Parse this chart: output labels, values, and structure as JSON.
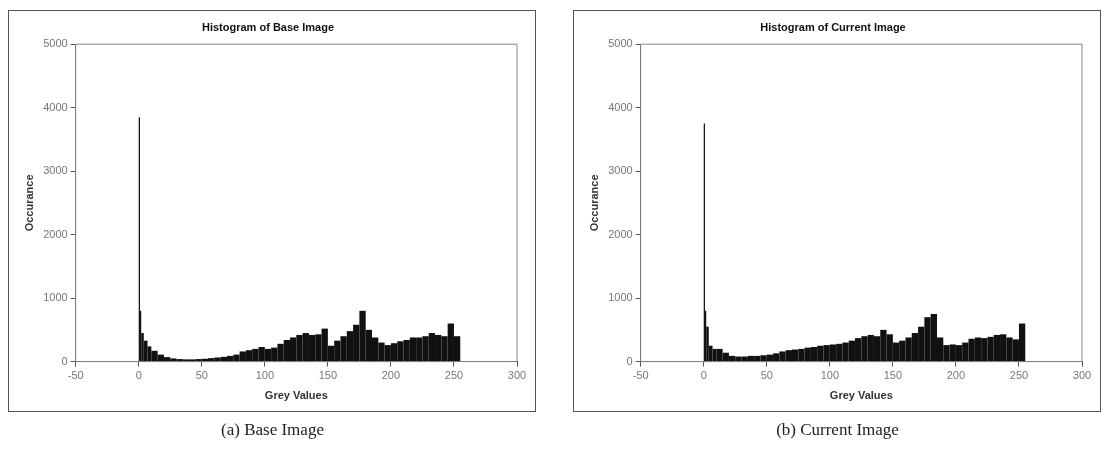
{
  "chart_data": [
    {
      "type": "histogram",
      "title": "Histogram of Base Image",
      "xlabel": "Grey Values",
      "ylabel": "Occurance",
      "annotations": [
        "(a)  Base Image"
      ],
      "color": "#111111",
      "bins": [
        0,
        1,
        2,
        4,
        7,
        10,
        15,
        20,
        25,
        30,
        35,
        40,
        45,
        50,
        55,
        60,
        65,
        70,
        75,
        80,
        85,
        90,
        95,
        100,
        105,
        110,
        115,
        120,
        125,
        130,
        135,
        140,
        145,
        150,
        155,
        160,
        165,
        170,
        175,
        180,
        185,
        190,
        195,
        200,
        205,
        210,
        215,
        220,
        225,
        230,
        235,
        240,
        245,
        250,
        255
      ],
      "values": [
        3850,
        800,
        450,
        330,
        240,
        170,
        110,
        70,
        50,
        40,
        35,
        35,
        40,
        45,
        55,
        65,
        75,
        90,
        110,
        160,
        180,
        200,
        230,
        200,
        220,
        280,
        340,
        380,
        420,
        450,
        420,
        430,
        520,
        250,
        330,
        400,
        480,
        580,
        800,
        500,
        380,
        300,
        260,
        290,
        320,
        340,
        380,
        380,
        400,
        450,
        420,
        400,
        600,
        400
      ],
      "xlim": [
        -50,
        300
      ],
      "xticks": [
        -50,
        0,
        50,
        100,
        150,
        200,
        250,
        300
      ],
      "ylim": [
        0,
        5000
      ],
      "yticks": [
        0,
        1000,
        2000,
        3000,
        4000,
        5000
      ],
      "grid": false,
      "legend": false
    },
    {
      "type": "histogram",
      "title": "Histogram of Current Image",
      "xlabel": "Grey Values",
      "ylabel": "Occurance",
      "annotations": [
        "(b)  Current Image"
      ],
      "color": "#111111",
      "bins": [
        0,
        1,
        2,
        4,
        7,
        10,
        15,
        20,
        25,
        30,
        35,
        40,
        45,
        50,
        55,
        60,
        65,
        70,
        75,
        80,
        85,
        90,
        95,
        100,
        105,
        110,
        115,
        120,
        125,
        130,
        135,
        140,
        145,
        150,
        155,
        160,
        165,
        170,
        175,
        180,
        185,
        190,
        195,
        200,
        205,
        210,
        215,
        220,
        225,
        230,
        235,
        240,
        245,
        250,
        255
      ],
      "values": [
        3750,
        800,
        550,
        250,
        200,
        200,
        140,
        90,
        80,
        80,
        90,
        90,
        100,
        110,
        130,
        160,
        180,
        190,
        200,
        220,
        230,
        250,
        260,
        270,
        280,
        300,
        330,
        370,
        400,
        420,
        400,
        500,
        430,
        300,
        330,
        380,
        450,
        550,
        700,
        750,
        380,
        260,
        270,
        260,
        300,
        360,
        380,
        370,
        390,
        420,
        430,
        380,
        350,
        600
      ],
      "xlim": [
        -50,
        300
      ],
      "xticks": [
        -50,
        0,
        50,
        100,
        150,
        200,
        250,
        300
      ],
      "ylim": [
        0,
        5000
      ],
      "yticks": [
        0,
        1000,
        2000,
        3000,
        4000,
        5000
      ],
      "grid": false,
      "legend": false
    }
  ]
}
